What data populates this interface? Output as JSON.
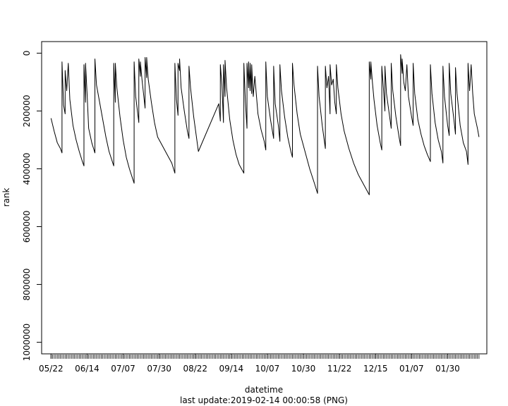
{
  "chart_data": {
    "type": "line",
    "title": "",
    "xlabel": "datetime",
    "ylabel": "rank",
    "caption": "last update:2019-02-14 00:00:58 (PNG)",
    "y_axis": {
      "reversed": true,
      "ylim": [
        1040000,
        -40000
      ],
      "ticks": [
        0,
        200000,
        400000,
        600000,
        800000,
        1000000
      ]
    },
    "x_axis": {
      "type": "date",
      "xlim": [
        "2018-05-16",
        "2019-02-24"
      ],
      "ticks": [
        "2018-05-22",
        "2018-06-14",
        "2018-07-07",
        "2018-07-30",
        "2018-08-22",
        "2018-09-14",
        "2018-10-07",
        "2018-10-30",
        "2018-11-22",
        "2018-12-15",
        "2019-01-07",
        "2019-01-30"
      ],
      "tick_labels": [
        "05/22",
        "06/14",
        "07/07",
        "07/30",
        "08/22",
        "09/14",
        "10/07",
        "10/30",
        "11/22",
        "12/15",
        "01/07",
        "01/30"
      ],
      "rug": true
    },
    "grid": false,
    "series": [
      {
        "color": "#000000",
        "points": [
          [
            "2018-05-22",
            225000
          ],
          [
            "2018-05-24",
            270000
          ],
          [
            "2018-05-26",
            310000
          ],
          [
            "2018-05-28",
            330000
          ],
          [
            "2018-05-29",
            345000
          ],
          [
            "2018-05-29",
            30000
          ],
          [
            "2018-05-30",
            180000
          ],
          [
            "2018-05-31",
            210000
          ],
          [
            "2018-05-31",
            60000
          ],
          [
            "2018-06-01",
            130000
          ],
          [
            "2018-06-02",
            35000
          ],
          [
            "2018-06-03",
            160000
          ],
          [
            "2018-06-05",
            250000
          ],
          [
            "2018-06-07",
            300000
          ],
          [
            "2018-06-09",
            340000
          ],
          [
            "2018-06-11",
            375000
          ],
          [
            "2018-06-12",
            390000
          ],
          [
            "2018-06-12",
            40000
          ],
          [
            "2018-06-13",
            170000
          ],
          [
            "2018-06-13",
            35000
          ],
          [
            "2018-06-14",
            140000
          ],
          [
            "2018-06-15",
            260000
          ],
          [
            "2018-06-17",
            310000
          ],
          [
            "2018-06-19",
            345000
          ],
          [
            "2018-06-19",
            20000
          ],
          [
            "2018-06-20",
            110000
          ],
          [
            "2018-06-22",
            170000
          ],
          [
            "2018-06-24",
            230000
          ],
          [
            "2018-06-26",
            290000
          ],
          [
            "2018-06-28",
            340000
          ],
          [
            "2018-07-01",
            390000
          ],
          [
            "2018-07-01",
            35000
          ],
          [
            "2018-07-02",
            170000
          ],
          [
            "2018-07-02",
            35000
          ],
          [
            "2018-07-03",
            120000
          ],
          [
            "2018-07-05",
            220000
          ],
          [
            "2018-07-07",
            300000
          ],
          [
            "2018-07-09",
            360000
          ],
          [
            "2018-07-11",
            400000
          ],
          [
            "2018-07-14",
            450000
          ],
          [
            "2018-07-14",
            30000
          ],
          [
            "2018-07-15",
            150000
          ],
          [
            "2018-07-17",
            240000
          ],
          [
            "2018-07-17",
            20000
          ],
          [
            "2018-07-18",
            80000
          ],
          [
            "2018-07-18",
            30000
          ],
          [
            "2018-07-19",
            90000
          ],
          [
            "2018-07-21",
            190000
          ],
          [
            "2018-07-21",
            15000
          ],
          [
            "2018-07-22",
            85000
          ],
          [
            "2018-07-22",
            15000
          ],
          [
            "2018-07-23",
            90000
          ],
          [
            "2018-07-25",
            170000
          ],
          [
            "2018-07-27",
            240000
          ],
          [
            "2018-07-29",
            290000
          ],
          [
            "2018-08-01",
            320000
          ],
          [
            "2018-08-04",
            350000
          ],
          [
            "2018-08-07",
            380000
          ],
          [
            "2018-08-09",
            415000
          ],
          [
            "2018-08-09",
            35000
          ],
          [
            "2018-08-10",
            160000
          ],
          [
            "2018-08-11",
            215000
          ],
          [
            "2018-08-11",
            35000
          ],
          [
            "2018-08-12",
            60000
          ],
          [
            "2018-08-12",
            20000
          ],
          [
            "2018-08-13",
            120000
          ],
          [
            "2018-08-15",
            200000
          ],
          [
            "2018-08-17",
            270000
          ],
          [
            "2018-08-18",
            295000
          ],
          [
            "2018-08-18",
            45000
          ],
          [
            "2018-08-19",
            120000
          ],
          [
            "2018-08-21",
            220000
          ],
          [
            "2018-08-23",
            300000
          ],
          [
            "2018-08-24",
            340000
          ],
          [
            "2018-09-06",
            175000
          ],
          [
            "2018-09-07",
            235000
          ],
          [
            "2018-09-07",
            40000
          ],
          [
            "2018-09-08",
            110000
          ],
          [
            "2018-09-09",
            240000
          ],
          [
            "2018-09-09",
            40000
          ],
          [
            "2018-09-10",
            150000
          ],
          [
            "2018-09-10",
            25000
          ],
          [
            "2018-09-11",
            120000
          ],
          [
            "2018-09-13",
            230000
          ],
          [
            "2018-09-15",
            300000
          ],
          [
            "2018-09-17",
            350000
          ],
          [
            "2018-09-19",
            385000
          ],
          [
            "2018-09-22",
            415000
          ],
          [
            "2018-09-22",
            35000
          ],
          [
            "2018-09-23",
            170000
          ],
          [
            "2018-09-24",
            260000
          ],
          [
            "2018-09-24",
            35000
          ],
          [
            "2018-09-25",
            120000
          ],
          [
            "2018-09-25",
            30000
          ],
          [
            "2018-09-26",
            130000
          ],
          [
            "2018-09-26",
            35000
          ],
          [
            "2018-09-27",
            140000
          ],
          [
            "2018-09-27",
            40000
          ],
          [
            "2018-09-28",
            150000
          ],
          [
            "2018-09-29",
            80000
          ],
          [
            "2018-10-01",
            210000
          ],
          [
            "2018-10-03",
            265000
          ],
          [
            "2018-10-05",
            305000
          ],
          [
            "2018-10-06",
            335000
          ],
          [
            "2018-10-06",
            30000
          ],
          [
            "2018-10-07",
            150000
          ],
          [
            "2018-10-09",
            230000
          ],
          [
            "2018-10-11",
            295000
          ],
          [
            "2018-10-11",
            45000
          ],
          [
            "2018-10-12",
            175000
          ],
          [
            "2018-10-14",
            250000
          ],
          [
            "2018-10-15",
            305000
          ],
          [
            "2018-10-15",
            40000
          ],
          [
            "2018-10-16",
            130000
          ],
          [
            "2018-10-18",
            220000
          ],
          [
            "2018-10-20",
            290000
          ],
          [
            "2018-10-22",
            340000
          ],
          [
            "2018-10-23",
            360000
          ],
          [
            "2018-10-23",
            35000
          ],
          [
            "2018-10-24",
            110000
          ],
          [
            "2018-10-26",
            210000
          ],
          [
            "2018-10-28",
            280000
          ],
          [
            "2018-10-31",
            340000
          ],
          [
            "2018-11-03",
            400000
          ],
          [
            "2018-11-06",
            450000
          ],
          [
            "2018-11-08",
            485000
          ],
          [
            "2018-11-08",
            45000
          ],
          [
            "2018-11-09",
            150000
          ],
          [
            "2018-11-11",
            250000
          ],
          [
            "2018-11-13",
            330000
          ],
          [
            "2018-11-13",
            45000
          ],
          [
            "2018-11-14",
            120000
          ],
          [
            "2018-11-15",
            80000
          ],
          [
            "2018-11-16",
            210000
          ],
          [
            "2018-11-16",
            40000
          ],
          [
            "2018-11-17",
            110000
          ],
          [
            "2018-11-18",
            90000
          ],
          [
            "2018-11-19",
            170000
          ],
          [
            "2018-11-20",
            210000
          ],
          [
            "2018-11-20",
            40000
          ],
          [
            "2018-11-21",
            120000
          ],
          [
            "2018-11-23",
            210000
          ],
          [
            "2018-11-25",
            270000
          ],
          [
            "2018-11-28",
            330000
          ],
          [
            "2018-12-01",
            380000
          ],
          [
            "2018-12-04",
            420000
          ],
          [
            "2018-12-08",
            460000
          ],
          [
            "2018-12-11",
            490000
          ],
          [
            "2018-12-11",
            30000
          ],
          [
            "2018-12-12",
            90000
          ],
          [
            "2018-12-12",
            30000
          ],
          [
            "2018-12-13",
            100000
          ],
          [
            "2018-12-14",
            160000
          ],
          [
            "2018-12-16",
            250000
          ],
          [
            "2018-12-18",
            310000
          ],
          [
            "2018-12-19",
            335000
          ],
          [
            "2018-12-19",
            45000
          ],
          [
            "2018-12-20",
            120000
          ],
          [
            "2018-12-21",
            200000
          ],
          [
            "2018-12-21",
            45000
          ],
          [
            "2018-12-22",
            140000
          ],
          [
            "2018-12-24",
            220000
          ],
          [
            "2018-12-25",
            260000
          ],
          [
            "2018-12-25",
            35000
          ],
          [
            "2018-12-26",
            130000
          ],
          [
            "2018-12-28",
            220000
          ],
          [
            "2018-12-30",
            290000
          ],
          [
            "2018-12-31",
            320000
          ],
          [
            "2018-12-31",
            5000
          ],
          [
            "2019-01-01",
            70000
          ],
          [
            "2019-01-01",
            20000
          ],
          [
            "2019-01-02",
            100000
          ],
          [
            "2019-01-03",
            130000
          ],
          [
            "2019-01-04",
            40000
          ],
          [
            "2019-01-05",
            150000
          ],
          [
            "2019-01-07",
            220000
          ],
          [
            "2019-01-08",
            250000
          ],
          [
            "2019-01-08",
            35000
          ],
          [
            "2019-01-09",
            140000
          ],
          [
            "2019-01-11",
            230000
          ],
          [
            "2019-01-13",
            280000
          ],
          [
            "2019-01-15",
            320000
          ],
          [
            "2019-01-17",
            350000
          ],
          [
            "2019-01-19",
            375000
          ],
          [
            "2019-01-19",
            40000
          ],
          [
            "2019-01-20",
            140000
          ],
          [
            "2019-01-22",
            240000
          ],
          [
            "2019-01-24",
            300000
          ],
          [
            "2019-01-26",
            340000
          ],
          [
            "2019-01-27",
            380000
          ],
          [
            "2019-01-27",
            45000
          ],
          [
            "2019-01-28",
            150000
          ],
          [
            "2019-01-30",
            250000
          ],
          [
            "2019-01-31",
            285000
          ],
          [
            "2019-01-31",
            35000
          ],
          [
            "2019-02-01",
            140000
          ],
          [
            "2019-02-03",
            230000
          ],
          [
            "2019-02-04",
            280000
          ],
          [
            "2019-02-04",
            50000
          ],
          [
            "2019-02-05",
            140000
          ],
          [
            "2019-02-07",
            250000
          ],
          [
            "2019-02-09",
            310000
          ],
          [
            "2019-02-11",
            340000
          ],
          [
            "2019-02-12",
            385000
          ],
          [
            "2019-02-12",
            35000
          ],
          [
            "2019-02-13",
            130000
          ],
          [
            "2019-02-14",
            40000
          ],
          [
            "2019-02-15",
            140000
          ],
          [
            "2019-02-16",
            210000
          ],
          [
            "2019-02-18",
            260000
          ],
          [
            "2019-02-19",
            290000
          ]
        ]
      }
    ]
  }
}
